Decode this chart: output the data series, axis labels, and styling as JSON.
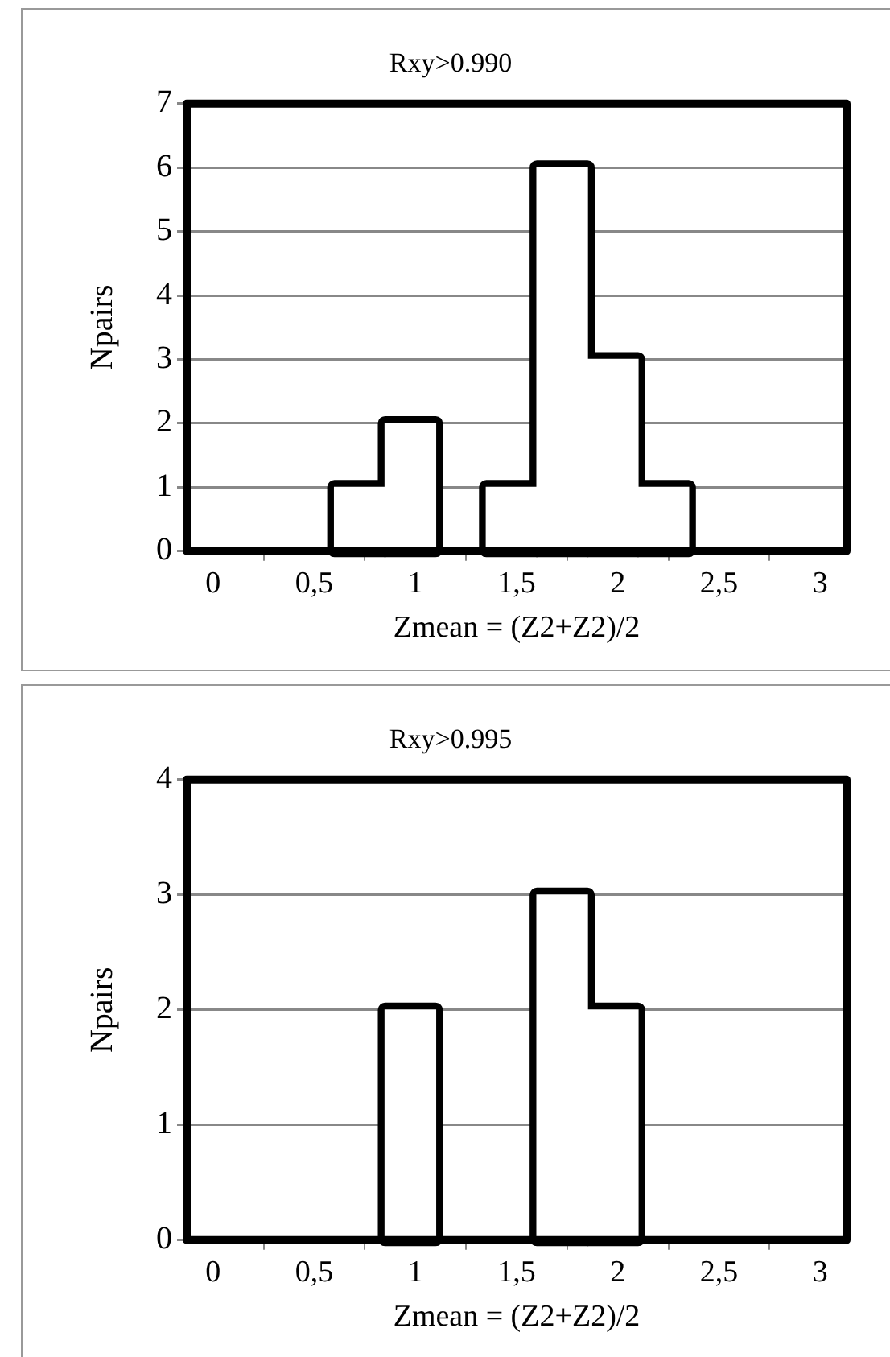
{
  "chart_data": [
    {
      "type": "histogram",
      "title": "Rxy>0.990",
      "xlabel": "Zmean = (Z2+Z2)/2",
      "ylabel": "Npairs",
      "bins": [
        0.6,
        0.85,
        1.1,
        1.35,
        1.6,
        1.85,
        2.1,
        2.35
      ],
      "values": [
        1,
        2,
        0,
        1,
        6,
        3,
        1
      ],
      "color": "#ffffff",
      "xlim": [
        -0.13,
        3.13
      ],
      "xticks": [
        0,
        {
          "value": 0.5,
          "label": "0,5"
        },
        1,
        {
          "value": 1.5,
          "label": "1,5"
        },
        2,
        {
          "value": 2.5,
          "label": "2,5"
        },
        3
      ],
      "ylim": [
        0,
        7
      ],
      "yticks": [
        0,
        1,
        2,
        3,
        4,
        5,
        6,
        7
      ],
      "grid": "y",
      "legend": false
    },
    {
      "type": "histogram",
      "title": "Rxy>0.995",
      "xlabel": "Zmean = (Z2+Z2)/2",
      "ylabel": "Npairs",
      "bins": [
        0.85,
        1.1,
        1.35,
        1.6,
        1.85,
        2.1
      ],
      "values": [
        2,
        0,
        0,
        3,
        2
      ],
      "color": "#ffffff",
      "xlim": [
        -0.13,
        3.13
      ],
      "xticks": [
        0,
        {
          "value": 0.5,
          "label": "0,5"
        },
        1,
        {
          "value": 1.5,
          "label": "1,5"
        },
        2,
        {
          "value": 2.5,
          "label": "2,5"
        },
        3
      ],
      "ylim": [
        0,
        4
      ],
      "yticks": [
        0,
        1,
        2,
        3,
        4
      ],
      "grid": "y",
      "legend": false
    }
  ]
}
